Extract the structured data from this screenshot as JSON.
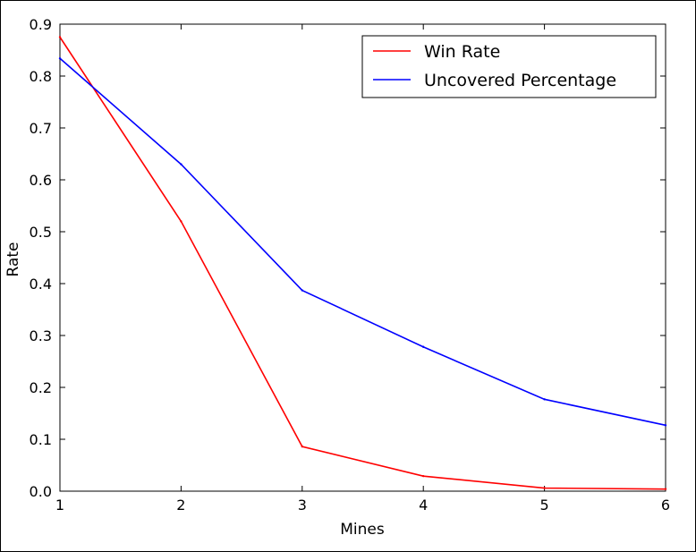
{
  "chart_data": {
    "type": "line",
    "xlabel": "Mines",
    "ylabel": "Rate",
    "xlim": [
      1,
      6
    ],
    "ylim": [
      0.0,
      0.9
    ],
    "x": [
      1,
      2,
      3,
      4,
      5,
      6
    ],
    "xticks": [
      "1",
      "2",
      "3",
      "4",
      "5",
      "6"
    ],
    "yticks": [
      "0.0",
      "0.1",
      "0.2",
      "0.3",
      "0.4",
      "0.5",
      "0.6",
      "0.7",
      "0.8",
      "0.9"
    ],
    "grid": false,
    "legend_position": "top-right",
    "series": [
      {
        "name": "Win Rate",
        "color": "#ff0000",
        "values": [
          0.875,
          0.52,
          0.086,
          0.029,
          0.006,
          0.004
        ]
      },
      {
        "name": "Uncovered Percentage",
        "color": "#0000ff",
        "values": [
          0.834,
          0.63,
          0.387,
          0.278,
          0.177,
          0.127
        ]
      }
    ]
  }
}
